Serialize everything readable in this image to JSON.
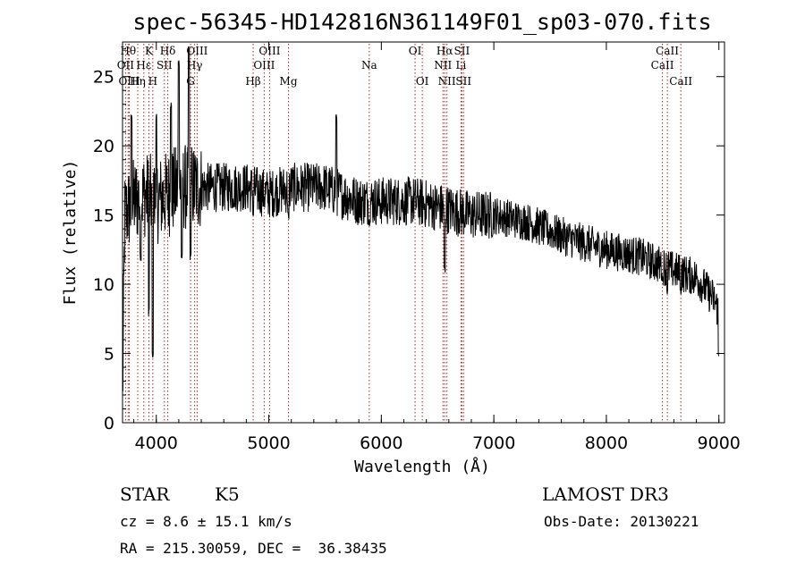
{
  "chart_data": {
    "type": "line",
    "title": "spec-56345-HD142816N361149F01_sp03-070.fits",
    "xlabel": "Wavelength (Å)",
    "ylabel": "Flux (relative)",
    "xlim": [
      3700,
      9050
    ],
    "ylim": [
      0,
      27.5
    ],
    "x_ticks": [
      4000,
      5000,
      6000,
      7000,
      8000,
      9000
    ],
    "y_ticks": [
      0,
      5,
      10,
      15,
      20,
      25
    ],
    "grid": false,
    "continuum_anchors": [
      [
        3700,
        1.5
      ],
      [
        3720,
        15
      ],
      [
        3800,
        16
      ],
      [
        3900,
        16.5
      ],
      [
        4000,
        16
      ],
      [
        4200,
        17
      ],
      [
        4500,
        17
      ],
      [
        4800,
        17
      ],
      [
        5000,
        16.5
      ],
      [
        5200,
        17
      ],
      [
        5500,
        17
      ],
      [
        5800,
        16
      ],
      [
        6000,
        16
      ],
      [
        6300,
        16
      ],
      [
        6550,
        15.5
      ],
      [
        6800,
        15
      ],
      [
        7000,
        15
      ],
      [
        7300,
        14.5
      ],
      [
        7600,
        13.5
      ],
      [
        8000,
        12.5
      ],
      [
        8300,
        12
      ],
      [
        8600,
        11
      ],
      [
        8800,
        10.5
      ],
      [
        8950,
        9
      ],
      [
        9000,
        8
      ]
    ],
    "features": [
      {
        "x": 3780,
        "y": 22,
        "note": "spike"
      },
      {
        "x": 3860,
        "y": 12,
        "note": "absorption"
      },
      {
        "x": 3934,
        "y": 8,
        "note": "Ca K absorption"
      },
      {
        "x": 3969,
        "y": 5,
        "note": "Ca H absorption"
      },
      {
        "x": 4000,
        "y": 22,
        "note": "spike"
      },
      {
        "x": 4130,
        "y": 23,
        "note": "spike"
      },
      {
        "x": 4200,
        "y": 26,
        "note": "spike"
      },
      {
        "x": 4226,
        "y": 12,
        "note": "absorption"
      },
      {
        "x": 4290,
        "y": 27,
        "note": "spike"
      },
      {
        "x": 4305,
        "y": 12,
        "note": "G band"
      },
      {
        "x": 4861,
        "y": 15,
        "note": "H-beta"
      },
      {
        "x": 5175,
        "y": 15,
        "note": "Mg"
      },
      {
        "x": 5600,
        "y": 22,
        "note": "spike"
      },
      {
        "x": 5893,
        "y": 14.5,
        "note": "Na D"
      },
      {
        "x": 6563,
        "y": 11,
        "note": "H-alpha"
      },
      {
        "x": 8498,
        "y": 10.5,
        "note": "Ca II"
      },
      {
        "x": 8542,
        "y": 9.5,
        "note": "Ca II"
      },
      {
        "x": 8662,
        "y": 9.5,
        "note": "Ca II"
      },
      {
        "x": 9000,
        "y": 5,
        "note": "edge dip"
      }
    ],
    "spectral_lines": [
      {
        "label": "Hθ",
        "x": 3750,
        "row": 0
      },
      {
        "label": "K",
        "x": 3934,
        "row": 0
      },
      {
        "label": "Hδ",
        "x": 4102,
        "row": 0
      },
      {
        "label": "OII",
        "x": 3727,
        "row": 1
      },
      {
        "label": "Hε",
        "x": 3889,
        "row": 1
      },
      {
        "label": "SII",
        "x": 4072,
        "row": 1
      },
      {
        "label": "OIII",
        "x": 3760,
        "row": 2
      },
      {
        "label": "Hη",
        "x": 3835,
        "row": 2
      },
      {
        "label": "H",
        "x": 3969,
        "row": 2
      },
      {
        "label": "OIII",
        "x": 4363,
        "row": 0
      },
      {
        "label": "Hγ",
        "x": 4341,
        "row": 1
      },
      {
        "label": "G",
        "x": 4305,
        "row": 2
      },
      {
        "label": "OIII",
        "x": 5007,
        "row": 0
      },
      {
        "label": "OIII",
        "x": 4959,
        "row": 1
      },
      {
        "label": "Hβ",
        "x": 4861,
        "row": 2
      },
      {
        "label": "Mg",
        "x": 5175,
        "row": 2
      },
      {
        "label": "Na",
        "x": 5893,
        "row": 1
      },
      {
        "label": "OI",
        "x": 6300,
        "row": 0
      },
      {
        "label": "OI",
        "x": 6364,
        "row": 2
      },
      {
        "label": "Hα",
        "x": 6563,
        "row": 0
      },
      {
        "label": "SII",
        "x": 6716,
        "row": 0
      },
      {
        "label": "NII",
        "x": 6548,
        "row": 1
      },
      {
        "label": "Li",
        "x": 6708,
        "row": 1
      },
      {
        "label": "NII",
        "x": 6583,
        "row": 2
      },
      {
        "label": "SII",
        "x": 6731,
        "row": 2
      },
      {
        "label": "CaII",
        "x": 8542,
        "row": 0
      },
      {
        "label": "CaII",
        "x": 8498,
        "row": 1
      },
      {
        "label": "CaII",
        "x": 8662,
        "row": 2
      }
    ],
    "line_color": "#000000",
    "marker_color": "#b22222"
  },
  "info": {
    "object_class": "STAR",
    "subclass": "K5",
    "survey": "LAMOST DR3",
    "redshift": "cz = 8.6 ± 15.1 km/s",
    "obs_date": "Obs-Date: 20130221",
    "coords": "RA = 215.30059, DEC =  36.38435"
  }
}
